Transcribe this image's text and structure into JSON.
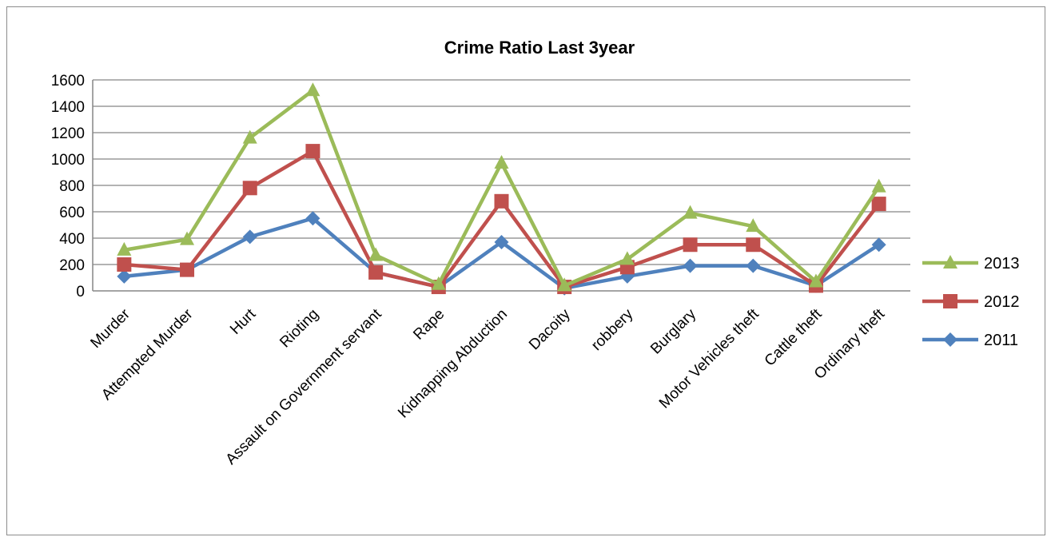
{
  "chart_data": {
    "type": "line",
    "title": "Crime Ratio Last 3year",
    "xlabel": "",
    "ylabel": "",
    "ylim": [
      0,
      1600
    ],
    "yticks": [
      0,
      200,
      400,
      600,
      800,
      1000,
      1200,
      1400,
      1600
    ],
    "grid": true,
    "legend_position": "right",
    "categories": [
      "Murder",
      "Attempted Murder",
      "Hurt",
      "Rioting",
      "Assault on Government servant",
      "Rape",
      "Kidnapping Abduction",
      "Dacoity",
      "robbery",
      "Burglary",
      "Motor Vehicles theft",
      "Cattle theft",
      "Ordinary theft"
    ],
    "series": [
      {
        "name": "2013",
        "color": "#9bbb59",
        "marker": "triangle",
        "values": [
          310,
          390,
          1160,
          1520,
          270,
          50,
          970,
          40,
          240,
          590,
          490,
          70,
          790
        ]
      },
      {
        "name": "2012",
        "color": "#c0504d",
        "marker": "square",
        "values": [
          200,
          160,
          780,
          1060,
          140,
          30,
          680,
          30,
          180,
          350,
          350,
          40,
          660
        ]
      },
      {
        "name": "2011",
        "color": "#4f81bd",
        "marker": "diamond",
        "values": [
          110,
          160,
          410,
          550,
          140,
          30,
          370,
          20,
          110,
          190,
          190,
          40,
          350
        ]
      }
    ]
  }
}
